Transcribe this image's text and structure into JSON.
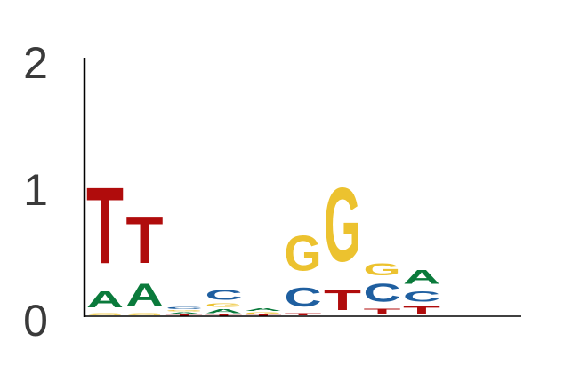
{
  "chart_data": {
    "type": "sequence-logo",
    "title": "",
    "xlabel": "",
    "ylabel": "",
    "ylim": [
      0,
      2
    ],
    "yticks": [
      "0",
      "1",
      "2"
    ],
    "grid": false,
    "colors": {
      "A": "#0a7a3b",
      "C": "#1f5fa0",
      "G": "#ecc22f",
      "T": "#b00c0c"
    },
    "positions": [
      {
        "stack": [
          [
            "G",
            0.03
          ],
          [
            "A",
            0.2
          ],
          [
            "T",
            0.95
          ]
        ]
      },
      {
        "stack": [
          [
            "G",
            0.03
          ],
          [
            "A",
            0.27
          ],
          [
            "T",
            0.58
          ]
        ]
      },
      {
        "stack": [
          [
            "T",
            0.015
          ],
          [
            "A",
            0.02
          ],
          [
            "G",
            0.015
          ],
          [
            "C",
            0.025
          ]
        ]
      },
      {
        "stack": [
          [
            "T",
            0.015
          ],
          [
            "A",
            0.05
          ],
          [
            "G",
            0.04
          ],
          [
            "C",
            0.12
          ]
        ]
      },
      {
        "stack": [
          [
            "T",
            0.01
          ],
          [
            "G",
            0.025
          ],
          [
            "A",
            0.035
          ]
        ]
      },
      {
        "stack": [
          [
            "T",
            0.03
          ],
          [
            "C",
            0.24
          ],
          [
            "G",
            0.44
          ]
        ]
      },
      {
        "stack": [
          [
            "T",
            0.25
          ],
          [
            "G",
            0.92
          ]
        ]
      },
      {
        "stack": [
          [
            "T",
            0.07
          ],
          [
            "C",
            0.22
          ],
          [
            "G",
            0.15
          ]
        ]
      },
      {
        "stack": [
          [
            "T",
            0.09
          ],
          [
            "C",
            0.13
          ],
          [
            "A",
            0.17
          ]
        ]
      }
    ]
  }
}
